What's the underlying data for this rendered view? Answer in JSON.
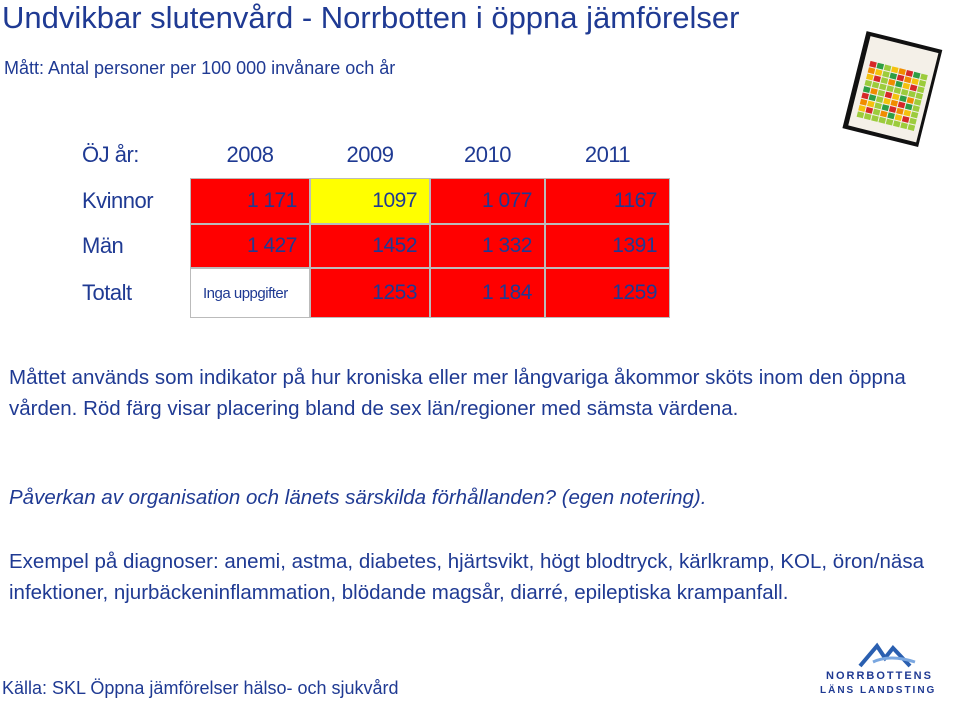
{
  "header": {
    "title": "Undvikbar slutenvård - Norrbotten i öppna jämförelser",
    "subtitle": "Mått: Antal personer per 100 000 invånare och år"
  },
  "table": {
    "corner": "ÖJ år:",
    "columns": [
      "2008",
      "2009",
      "2010",
      "2011"
    ],
    "rows": [
      {
        "label": "Kvinnor",
        "cells": [
          "1 171",
          "1097",
          "1 077",
          "1167"
        ],
        "colors": [
          "#ff0000",
          "#ffff00",
          "#ff0000",
          "#ff0000"
        ]
      },
      {
        "label": "Män",
        "cells": [
          "1 427",
          "1452",
          "1 332",
          "1391"
        ],
        "colors": [
          "#ff0000",
          "#ff0000",
          "#ff0000",
          "#ff0000"
        ]
      },
      {
        "label": "Totalt",
        "cells": [
          "Inga uppgifter",
          "1253",
          "1 184",
          "1259"
        ],
        "colors": [
          "#ffffff",
          "#ff0000",
          "#ff0000",
          "#ff0000"
        ]
      }
    ]
  },
  "paragraphs": [
    "Måttet används som indikator på hur kroniska eller mer långvariga åkommor sköts inom den öppna vården. Röd färg visar placering bland de sex län/regioner med sämsta värdena.",
    "Påverkan av organisation och länets särskilda förhållanden? (egen notering).",
    "Exempel på diagnoser: anemi, astma, diabetes, hjärtsvikt, högt blodtryck, kärlkramp, KOL, öron/näsa infektioner, njurbäckeninflammation, blödande magsår, diarré, epileptiska krampanfall."
  ],
  "source": "Källa: SKL Öppna jämförelser hälso- och sjukvård",
  "logo": {
    "line1": "NORRBOTTENS",
    "line2": "LÄNS LANDSTING"
  }
}
